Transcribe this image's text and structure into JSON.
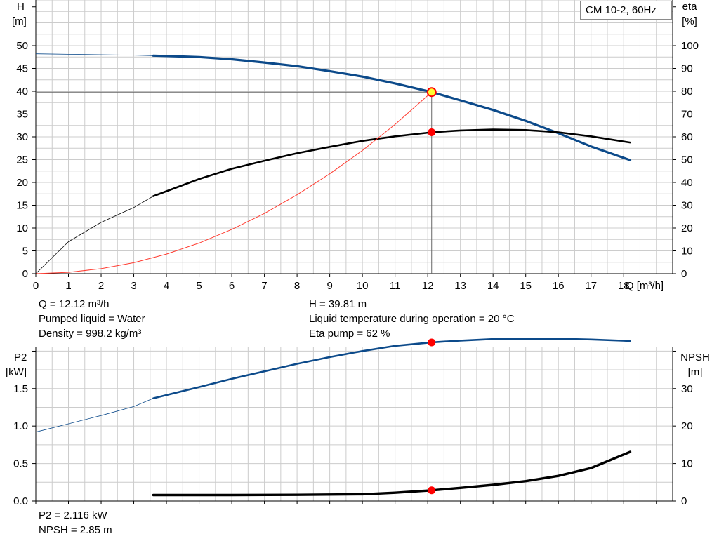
{
  "legend_label": "CM 10-2, 60Hz",
  "colors": {
    "head": "#0c4a8a",
    "eff": "#000000",
    "power": "#0c4a8a",
    "npsh": "#000000",
    "system": "#ff3b30",
    "grid": "#cccccc",
    "axis": "#000000",
    "op_point": "#ff0000",
    "op_main": "#ffff33"
  },
  "top_info_left": [
    "Q = 12.12 m³/h",
    "Pumped liquid = Water",
    "Density = 998.2 kg/m³"
  ],
  "top_info_right": [
    "H = 39.81 m",
    "Liquid temperature during operation = 20 °C",
    "Eta pump = 62 %"
  ],
  "bottom_info": [
    "P2 = 2.116 kW",
    "NPSH = 2.85 m"
  ],
  "chart_data": [
    {
      "type": "line",
      "yaxis_left": {
        "label_top": "H",
        "label_unit": "[m]",
        "ticks": [
          0,
          5,
          10,
          15,
          20,
          25,
          30,
          35,
          40,
          45,
          50
        ],
        "range": [
          0,
          60
        ]
      },
      "yaxis_right": {
        "label_top": "eta",
        "label_unit": "[%]",
        "ticks": [
          0,
          10,
          20,
          30,
          40,
          50,
          60,
          70,
          80,
          90,
          100
        ],
        "range": [
          0,
          120
        ]
      },
      "xaxis": {
        "label": "Q [m³/h]",
        "ticks": [
          0,
          1,
          2,
          3,
          4,
          5,
          6,
          7,
          8,
          9,
          10,
          11,
          12,
          13,
          14,
          15,
          16,
          17,
          18
        ],
        "range": [
          0,
          19.5
        ]
      },
      "series": [
        {
          "key": "head",
          "axis": "left",
          "thin_until": 3.6,
          "x": [
            0,
            1,
            2,
            3,
            3.6,
            5,
            6,
            7,
            8,
            9,
            10,
            11,
            12.12,
            13,
            14,
            15,
            16,
            17,
            18.2
          ],
          "y": [
            48.2,
            48.1,
            48.0,
            47.9,
            47.8,
            47.5,
            47.0,
            46.3,
            45.5,
            44.4,
            43.2,
            41.7,
            39.81,
            38.0,
            35.9,
            33.5,
            30.8,
            27.9,
            24.9
          ]
        },
        {
          "key": "eff",
          "axis": "right",
          "thin_until": 3.6,
          "x": [
            0,
            1,
            2,
            3,
            3.6,
            5,
            6,
            7,
            8,
            9,
            10,
            11,
            12.12,
            13,
            14,
            15,
            16,
            17,
            18.2
          ],
          "y": [
            0,
            14,
            22.5,
            29,
            34,
            41.5,
            46,
            49.5,
            52.8,
            55.6,
            58.2,
            60.2,
            62,
            62.8,
            63.2,
            63,
            62,
            60.2,
            57.5
          ]
        },
        {
          "key": "system",
          "axis": "left",
          "thin_until": 99,
          "x": [
            0,
            1,
            2,
            3,
            4,
            5,
            6,
            7,
            8,
            9,
            10,
            11,
            12.12
          ],
          "y": [
            0,
            0.3,
            1.1,
            2.4,
            4.3,
            6.7,
            9.7,
            13.2,
            17.3,
            21.9,
            27.0,
            32.7,
            39.81
          ]
        }
      ],
      "operating_point": {
        "x": 12.12,
        "head": 39.81,
        "eff": 62
      }
    },
    {
      "type": "line",
      "yaxis_left": {
        "label_top": "P2",
        "label_unit": "[kW]",
        "ticks": [
          0.0,
          0.5,
          1.0,
          1.5
        ],
        "tick_labels": [
          "0.0",
          "0.5",
          "1.0",
          "1.5"
        ],
        "range": [
          0,
          2.05
        ]
      },
      "yaxis_right": {
        "label_top": "NPSH",
        "label_unit": "[m]",
        "ticks": [
          0,
          10,
          20,
          30
        ],
        "range": [
          0,
          41
        ]
      },
      "xaxis": {
        "range": [
          0,
          19.5
        ]
      },
      "series": [
        {
          "key": "power",
          "axis": "left",
          "thin_until": 3.6,
          "x": [
            0,
            1,
            2,
            3,
            3.6,
            5,
            6,
            7,
            8,
            9,
            10,
            11,
            12.12,
            13,
            14,
            15,
            16,
            17,
            18.2
          ],
          "y": [
            0.92,
            1.03,
            1.14,
            1.26,
            1.37,
            1.52,
            1.63,
            1.73,
            1.83,
            1.92,
            2.0,
            2.07,
            2.116,
            2.14,
            2.16,
            2.165,
            2.165,
            2.155,
            2.135
          ]
        },
        {
          "key": "npsh",
          "axis": "right",
          "thin_until": 3.6,
          "x": [
            0,
            3.6,
            6,
            8,
            10,
            11,
            12.12,
            13,
            14,
            15,
            16,
            17,
            18.2
          ],
          "y": [
            1.6,
            1.6,
            1.6,
            1.65,
            1.8,
            2.2,
            2.85,
            3.5,
            4.3,
            5.3,
            6.7,
            8.8,
            13.1
          ]
        }
      ],
      "operating_point": {
        "x": 12.12,
        "power": 2.116,
        "npsh": 2.85
      }
    }
  ]
}
